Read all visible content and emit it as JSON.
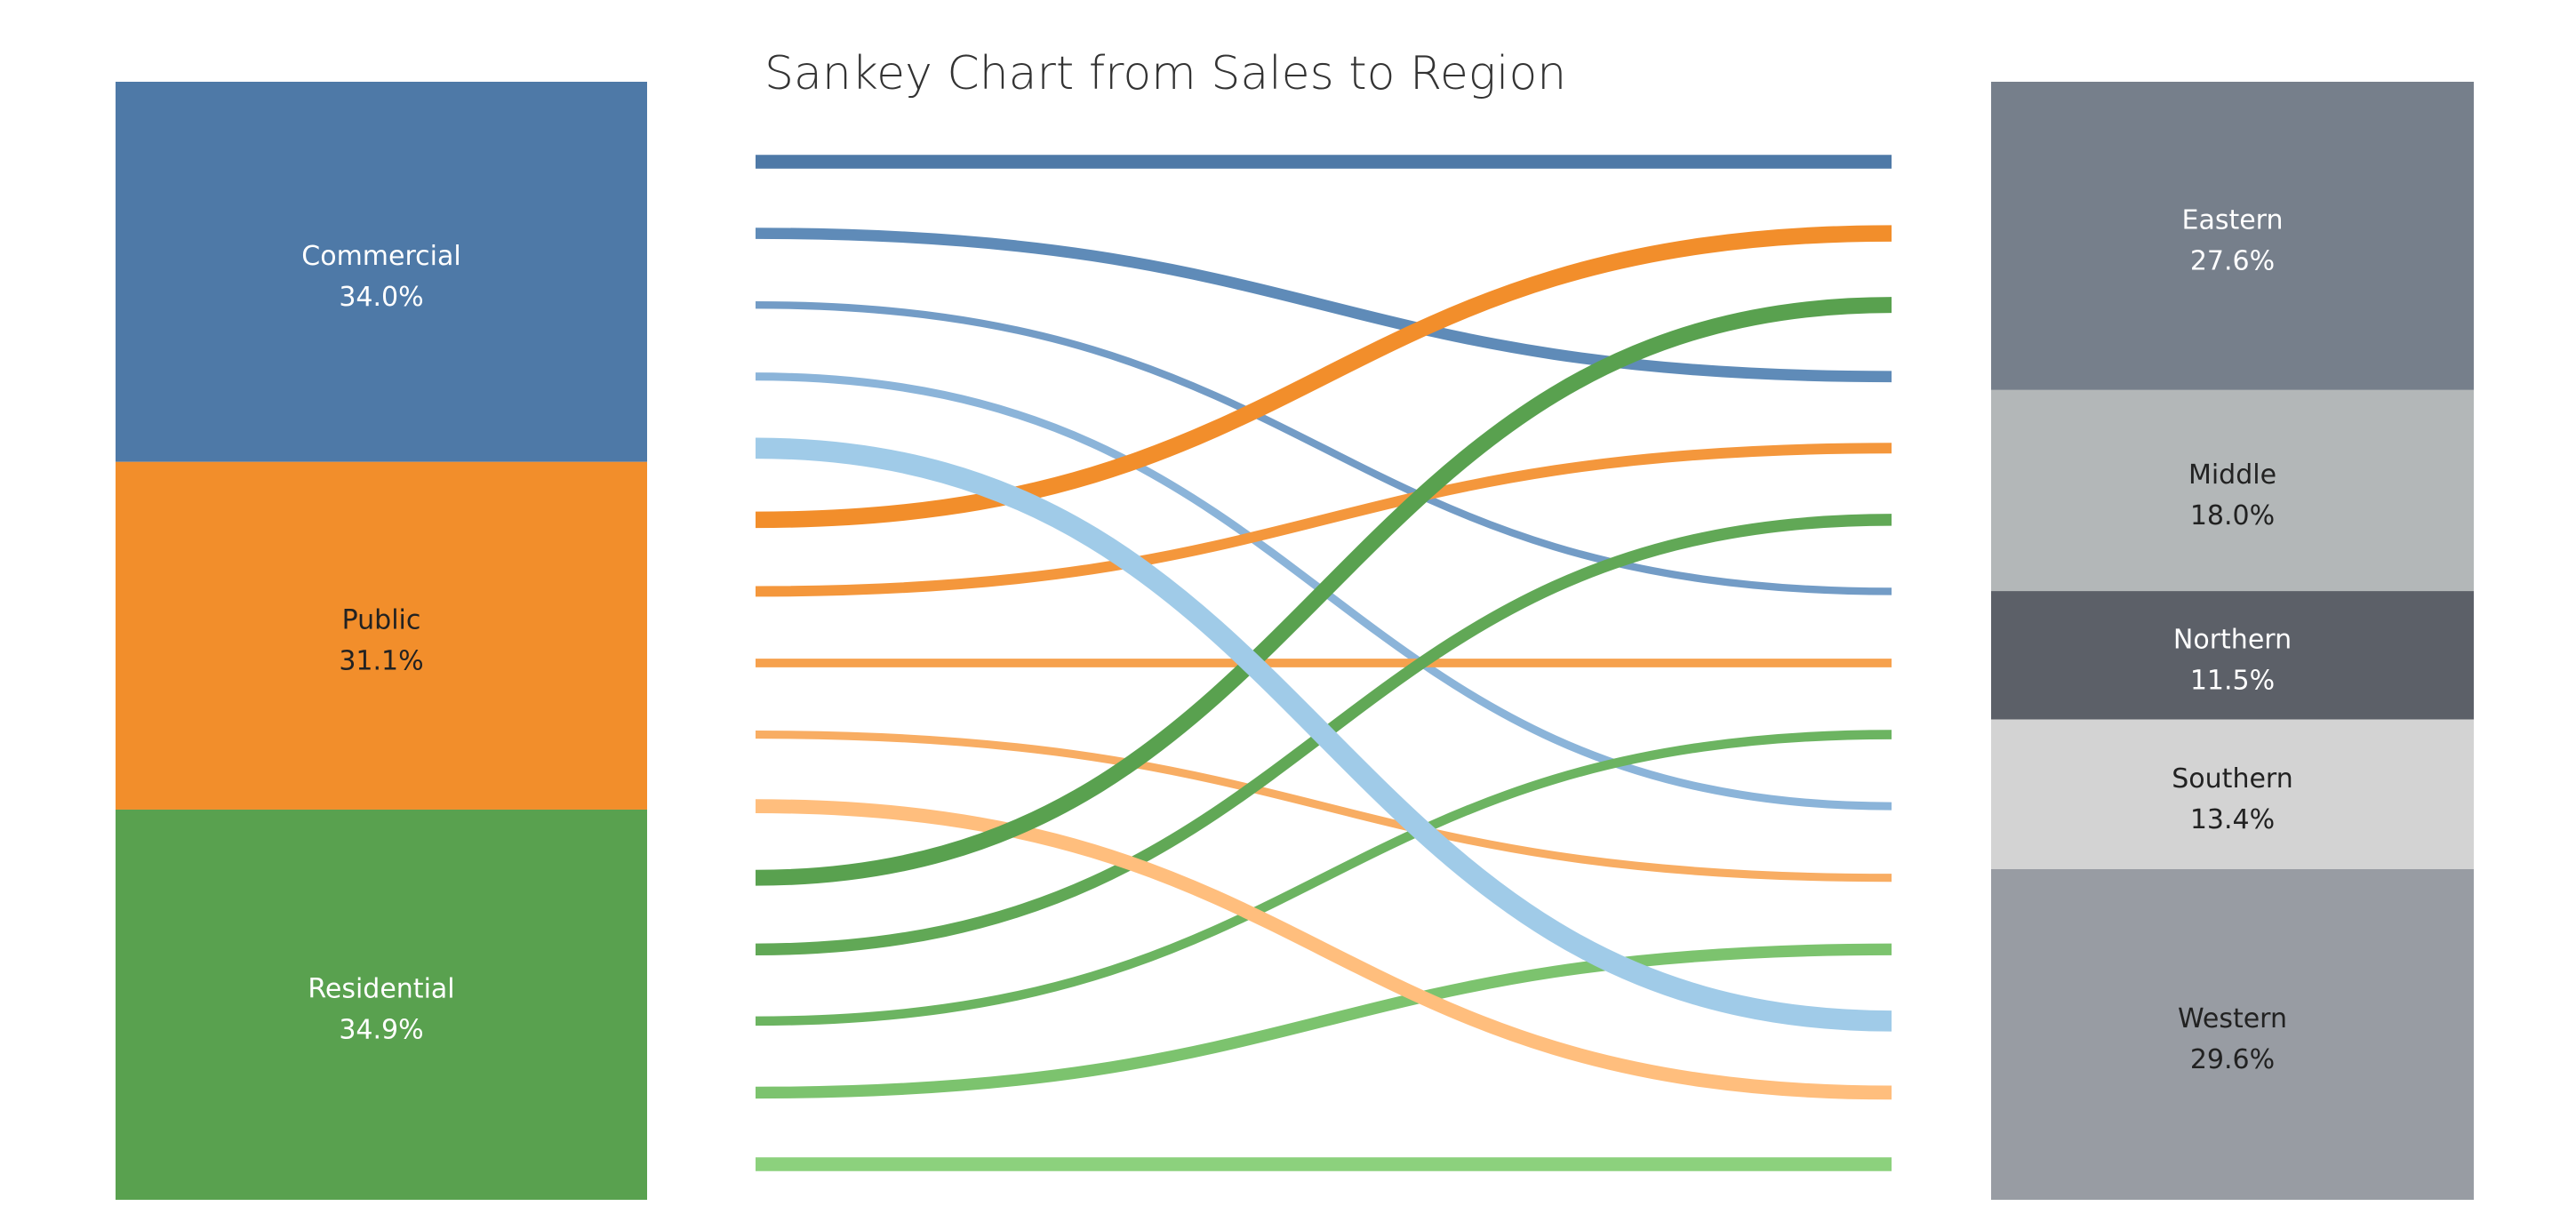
{
  "chart_data": {
    "type": "sankey",
    "title": "Sankey Chart from Sales to Region",
    "sources": [
      {
        "name": "Commercial",
        "pct_label": "34.0%",
        "share": 34.0,
        "color": "#4e79a7",
        "text_color": "#ffffff"
      },
      {
        "name": "Public",
        "pct_label": "31.1%",
        "share": 31.1,
        "color": "#f28e2b",
        "text_color": "#222222"
      },
      {
        "name": "Residential",
        "pct_label": "34.9%",
        "share": 34.9,
        "color": "#59a14f",
        "text_color": "#ffffff"
      }
    ],
    "targets": [
      {
        "name": "Eastern",
        "pct_label": "27.6%",
        "share": 27.6,
        "color": "#767f8b",
        "text_color": "#ffffff"
      },
      {
        "name": "Middle",
        "pct_label": "18.0%",
        "share": 18.0,
        "color": "#b3b7b8",
        "text_color": "#222222"
      },
      {
        "name": "Northern",
        "pct_label": "11.5%",
        "share": 11.5,
        "color": "#5c6068",
        "text_color": "#ffffff"
      },
      {
        "name": "Southern",
        "pct_label": "13.4%",
        "share": 13.4,
        "color": "#d3d3d3",
        "text_color": "#222222"
      },
      {
        "name": "Western",
        "pct_label": "29.6%",
        "share": 29.6,
        "color": "#989ca3",
        "text_color": "#222222"
      }
    ],
    "flows": [
      {
        "source": "Commercial",
        "target": "Eastern",
        "value": 8.0,
        "color": "#4e79a7"
      },
      {
        "source": "Commercial",
        "target": "Middle",
        "value": 6.0,
        "color": "#5f8bb8"
      },
      {
        "source": "Commercial",
        "target": "Northern",
        "value": 3.0,
        "color": "#739cc6"
      },
      {
        "source": "Commercial",
        "target": "Southern",
        "value": 3.5,
        "color": "#8bb4d9"
      },
      {
        "source": "Commercial",
        "target": "Western",
        "value": 13.5,
        "color": "#a0cbe8"
      },
      {
        "source": "Public",
        "target": "Eastern",
        "value": 10.0,
        "color": "#f28e2b"
      },
      {
        "source": "Public",
        "target": "Middle",
        "value": 5.5,
        "color": "#f4973c"
      },
      {
        "source": "Public",
        "target": "Northern",
        "value": 4.0,
        "color": "#f6a14d"
      },
      {
        "source": "Public",
        "target": "Southern",
        "value": 3.5,
        "color": "#f8ad63"
      },
      {
        "source": "Public",
        "target": "Western",
        "value": 8.1,
        "color": "#ffbe7d"
      },
      {
        "source": "Residential",
        "target": "Eastern",
        "value": 9.6,
        "color": "#59a14f"
      },
      {
        "source": "Residential",
        "target": "Middle",
        "value": 6.5,
        "color": "#61a856"
      },
      {
        "source": "Residential",
        "target": "Northern",
        "value": 4.5,
        "color": "#6cb461"
      },
      {
        "source": "Residential",
        "target": "Southern",
        "value": 6.4,
        "color": "#7cc36e"
      },
      {
        "source": "Residential",
        "target": "Western",
        "value": 7.9,
        "color": "#8cd17d"
      }
    ]
  }
}
